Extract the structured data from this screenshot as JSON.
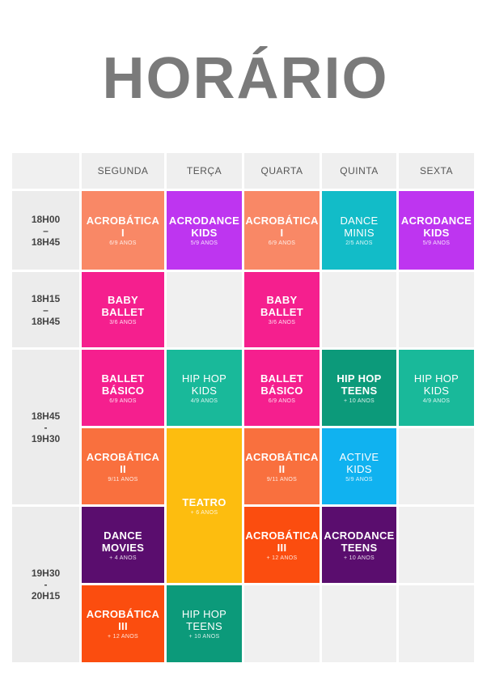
{
  "title": "HORÁRIO",
  "days": [
    "SEGUNDA",
    "TERÇA",
    "QUARTA",
    "QUINTA",
    "SEXTA"
  ],
  "times": {
    "t1": [
      "18H00",
      "–",
      "18H45"
    ],
    "t2": [
      "18H15",
      "–",
      "18H45"
    ],
    "t3": [
      "18H45",
      "-",
      "19H30"
    ],
    "t4": [
      "19H30",
      "-",
      "20H15"
    ]
  },
  "classes": {
    "acro1_seg": {
      "name": [
        "ACROBÁTICA",
        "I"
      ],
      "age": "6/9 ANOS"
    },
    "acrodance_ter": {
      "name": [
        "ACRODANCE",
        "KIDS"
      ],
      "age": "5/9 ANOS"
    },
    "acro1_qua": {
      "name": [
        "ACROBÁTICA",
        "I"
      ],
      "age": "6/9 ANOS"
    },
    "dance_minis": {
      "name": [
        "DANCE",
        "MINIS"
      ],
      "age": "2/5 ANOS"
    },
    "acrodance_sex": {
      "name": [
        "ACRODANCE",
        "KIDS"
      ],
      "age": "5/9 ANOS"
    },
    "baby_seg": {
      "name": [
        "BABY",
        "BALLET"
      ],
      "age": "3/6 ANOS"
    },
    "baby_qua": {
      "name": [
        "BABY",
        "BALLET"
      ],
      "age": "3/6 ANOS"
    },
    "ballet_seg": {
      "name": [
        "BALLET",
        "BÁSICO"
      ],
      "age": "6/9 ANOS"
    },
    "hiphopkids_ter": {
      "name": [
        "HIP HOP",
        "KIDS"
      ],
      "age": "4/9 ANOS"
    },
    "ballet_qua": {
      "name": [
        "BALLET",
        "BÁSICO"
      ],
      "age": "6/9 ANOS"
    },
    "hiphopteens_qui": {
      "name": [
        "HIP HOP",
        "TEENS"
      ],
      "age": "+ 10 ANOS"
    },
    "hiphopkids_sex": {
      "name": [
        "HIP HOP",
        "KIDS"
      ],
      "age": "4/9 ANOS"
    },
    "acro2_seg": {
      "name": [
        "ACROBÁTICA",
        "II"
      ],
      "age": "9/11 ANOS"
    },
    "teatro": {
      "name": [
        "TEATRO",
        ""
      ],
      "age": "+ 6 ANOS"
    },
    "acro2_qua": {
      "name": [
        "ACROBÁTICA",
        "II"
      ],
      "age": "9/11 ANOS"
    },
    "active_kids": {
      "name": [
        "ACTIVE",
        "KIDS"
      ],
      "age": "5/9 ANOS"
    },
    "dance_movies": {
      "name": [
        "DANCE",
        "MOVIES"
      ],
      "age": "+ 4 ANOS"
    },
    "acro3_qua": {
      "name": [
        "ACROBÁTICA",
        "III"
      ],
      "age": "+ 12 ANOS"
    },
    "acrodance_teens": {
      "name": [
        "ACRODANCE",
        "TEENS"
      ],
      "age": "+ 10 ANOS"
    },
    "acro3_seg": {
      "name": [
        "ACROBÁTICA",
        "III"
      ],
      "age": "+ 12 ANOS"
    },
    "hiphopteens_ter": {
      "name": [
        "HIP HOP",
        "TEENS"
      ],
      "age": "+ 10 ANOS"
    }
  },
  "colors": {
    "orange": "#f98866",
    "purple": "#be35f0",
    "teal": "#12bcc8",
    "pink": "#f51f8e",
    "green": "#19b99a",
    "dark_teal": "#0c9a7a",
    "orange2": "#f9703e",
    "yellow": "#fdbd0f",
    "sky": "#10b2f0",
    "violet": "#5a0d6e",
    "red": "#fb4d0f",
    "title_gray": "#7a7a7a"
  }
}
